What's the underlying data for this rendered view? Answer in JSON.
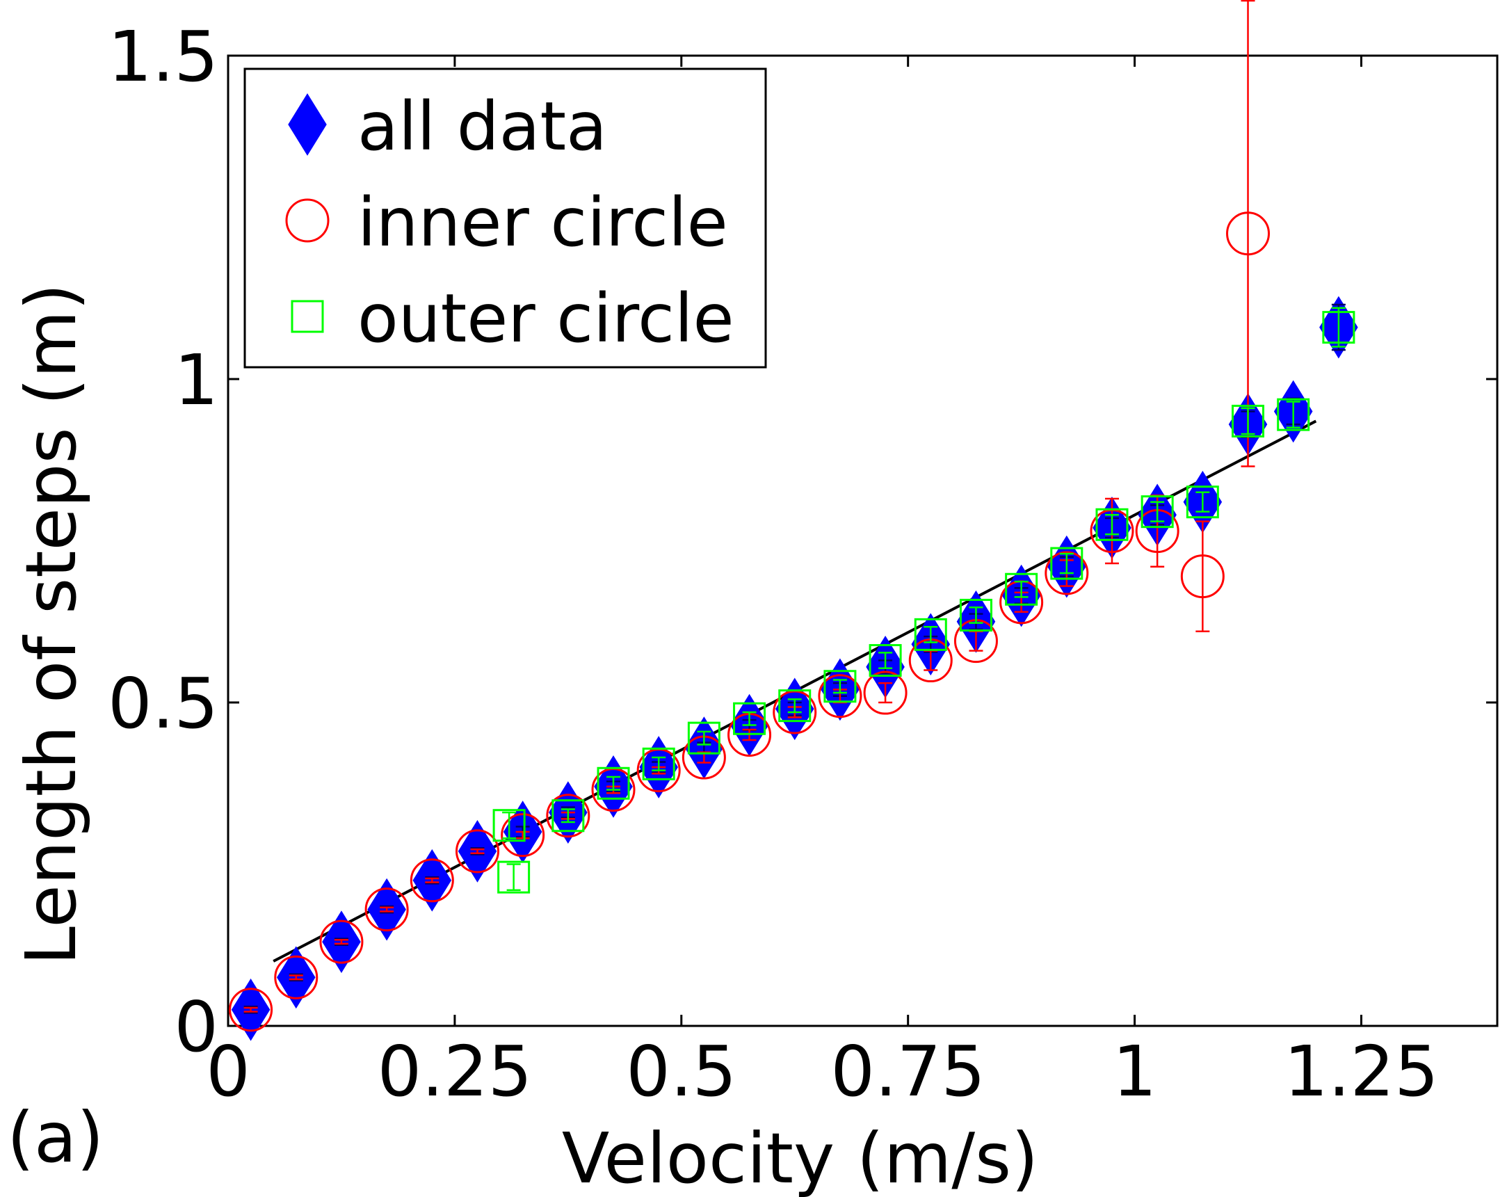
{
  "panel_label": "(a)",
  "chart_data": {
    "type": "scatter",
    "xlabel": "Velocity (m/s)",
    "ylabel": "Length of steps (m)",
    "xlim": [
      0,
      1.4
    ],
    "ylim": [
      0,
      1.5
    ],
    "xticks": [
      {
        "value": 0,
        "label": "0"
      },
      {
        "value": 0.25,
        "label": "0.25"
      },
      {
        "value": 0.5,
        "label": "0.5"
      },
      {
        "value": 0.75,
        "label": "0.75"
      },
      {
        "value": 1,
        "label": "1"
      },
      {
        "value": 1.25,
        "label": "1.25"
      }
    ],
    "yticks": [
      {
        "value": 0,
        "label": "0"
      },
      {
        "value": 0.5,
        "label": "0.5"
      },
      {
        "value": 1,
        "label": "1"
      },
      {
        "value": 1.5,
        "label": "1.5"
      }
    ],
    "grid": false,
    "legend_position": "top-left",
    "series": [
      {
        "name": "all data",
        "marker": "diamond",
        "color": "#0000ff",
        "filled": true,
        "points": [
          {
            "x": 0.025,
            "y": 0.025,
            "err": 0.005
          },
          {
            "x": 0.075,
            "y": 0.075,
            "err": 0.005
          },
          {
            "x": 0.125,
            "y": 0.13,
            "err": 0.005
          },
          {
            "x": 0.175,
            "y": 0.18,
            "err": 0.005
          },
          {
            "x": 0.225,
            "y": 0.225,
            "err": 0.005
          },
          {
            "x": 0.275,
            "y": 0.27,
            "err": 0.005
          },
          {
            "x": 0.325,
            "y": 0.3,
            "err": 0.008
          },
          {
            "x": 0.375,
            "y": 0.33,
            "err": 0.008
          },
          {
            "x": 0.425,
            "y": 0.37,
            "err": 0.008
          },
          {
            "x": 0.475,
            "y": 0.4,
            "err": 0.008
          },
          {
            "x": 0.525,
            "y": 0.43,
            "err": 0.008
          },
          {
            "x": 0.575,
            "y": 0.465,
            "err": 0.008
          },
          {
            "x": 0.625,
            "y": 0.49,
            "err": 0.01
          },
          {
            "x": 0.675,
            "y": 0.52,
            "err": 0.01
          },
          {
            "x": 0.725,
            "y": 0.555,
            "err": 0.01
          },
          {
            "x": 0.775,
            "y": 0.59,
            "err": 0.012
          },
          {
            "x": 0.825,
            "y": 0.625,
            "err": 0.012
          },
          {
            "x": 0.875,
            "y": 0.665,
            "err": 0.012
          },
          {
            "x": 0.925,
            "y": 0.71,
            "err": 0.015
          },
          {
            "x": 0.975,
            "y": 0.77,
            "err": 0.015
          },
          {
            "x": 1.025,
            "y": 0.79,
            "err": 0.015
          },
          {
            "x": 1.075,
            "y": 0.81,
            "err": 0.015
          },
          {
            "x": 1.125,
            "y": 0.93,
            "err": 0.02
          },
          {
            "x": 1.175,
            "y": 0.95,
            "err": 0.02
          },
          {
            "x": 1.225,
            "y": 1.08,
            "err": 0.035
          }
        ]
      },
      {
        "name": "inner circle",
        "marker": "circle",
        "color": "#ff0000",
        "filled": false,
        "points": [
          {
            "x": 0.025,
            "y": 0.025,
            "err": 0.003
          },
          {
            "x": 0.075,
            "y": 0.075,
            "err": 0.003
          },
          {
            "x": 0.125,
            "y": 0.13,
            "err": 0.003
          },
          {
            "x": 0.175,
            "y": 0.18,
            "err": 0.003
          },
          {
            "x": 0.225,
            "y": 0.225,
            "err": 0.003
          },
          {
            "x": 0.275,
            "y": 0.27,
            "err": 0.003
          },
          {
            "x": 0.325,
            "y": 0.295,
            "err": 0.005
          },
          {
            "x": 0.375,
            "y": 0.325,
            "err": 0.005
          },
          {
            "x": 0.425,
            "y": 0.365,
            "err": 0.005
          },
          {
            "x": 0.475,
            "y": 0.395,
            "err": 0.005
          },
          {
            "x": 0.525,
            "y": 0.415,
            "err": 0.008
          },
          {
            "x": 0.575,
            "y": 0.45,
            "err": 0.008
          },
          {
            "x": 0.625,
            "y": 0.485,
            "err": 0.008
          },
          {
            "x": 0.675,
            "y": 0.51,
            "err": 0.01
          },
          {
            "x": 0.725,
            "y": 0.515,
            "err": 0.015
          },
          {
            "x": 0.775,
            "y": 0.565,
            "err": 0.015
          },
          {
            "x": 0.825,
            "y": 0.595,
            "err": 0.015
          },
          {
            "x": 0.875,
            "y": 0.655,
            "err": 0.015
          },
          {
            "x": 0.925,
            "y": 0.7,
            "err": 0.02
          },
          {
            "x": 0.975,
            "y": 0.765,
            "err": 0.05
          },
          {
            "x": 1.025,
            "y": 0.765,
            "err": 0.055
          },
          {
            "x": 1.075,
            "y": 0.695,
            "err": 0.085
          },
          {
            "x": 1.125,
            "y": 1.225,
            "err": 0.36
          }
        ]
      },
      {
        "name": "outer circle",
        "marker": "square",
        "color": "#00ff00",
        "filled": false,
        "points": [
          {
            "x": 0.31,
            "y": 0.31,
            "err": 0.02
          },
          {
            "x": 0.315,
            "y": 0.23,
            "err": 0.02
          },
          {
            "x": 0.375,
            "y": 0.325,
            "err": 0.01
          },
          {
            "x": 0.425,
            "y": 0.375,
            "err": 0.01
          },
          {
            "x": 0.475,
            "y": 0.405,
            "err": 0.01
          },
          {
            "x": 0.525,
            "y": 0.445,
            "err": 0.01
          },
          {
            "x": 0.575,
            "y": 0.475,
            "err": 0.01
          },
          {
            "x": 0.625,
            "y": 0.495,
            "err": 0.01
          },
          {
            "x": 0.675,
            "y": 0.525,
            "err": 0.01
          },
          {
            "x": 0.725,
            "y": 0.565,
            "err": 0.012
          },
          {
            "x": 0.775,
            "y": 0.605,
            "err": 0.012
          },
          {
            "x": 0.825,
            "y": 0.635,
            "err": 0.012
          },
          {
            "x": 0.875,
            "y": 0.675,
            "err": 0.012
          },
          {
            "x": 0.925,
            "y": 0.715,
            "err": 0.015
          },
          {
            "x": 0.975,
            "y": 0.775,
            "err": 0.015
          },
          {
            "x": 1.025,
            "y": 0.795,
            "err": 0.015
          },
          {
            "x": 1.075,
            "y": 0.81,
            "err": 0.015
          },
          {
            "x": 1.125,
            "y": 0.935,
            "err": 0.02
          },
          {
            "x": 1.175,
            "y": 0.945,
            "err": 0.02
          },
          {
            "x": 1.225,
            "y": 1.08,
            "err": 0.03
          }
        ]
      }
    ],
    "fit_line": {
      "color": "#000000",
      "x": [
        0.05,
        1.2
      ],
      "y": [
        0.1,
        0.935
      ]
    }
  }
}
